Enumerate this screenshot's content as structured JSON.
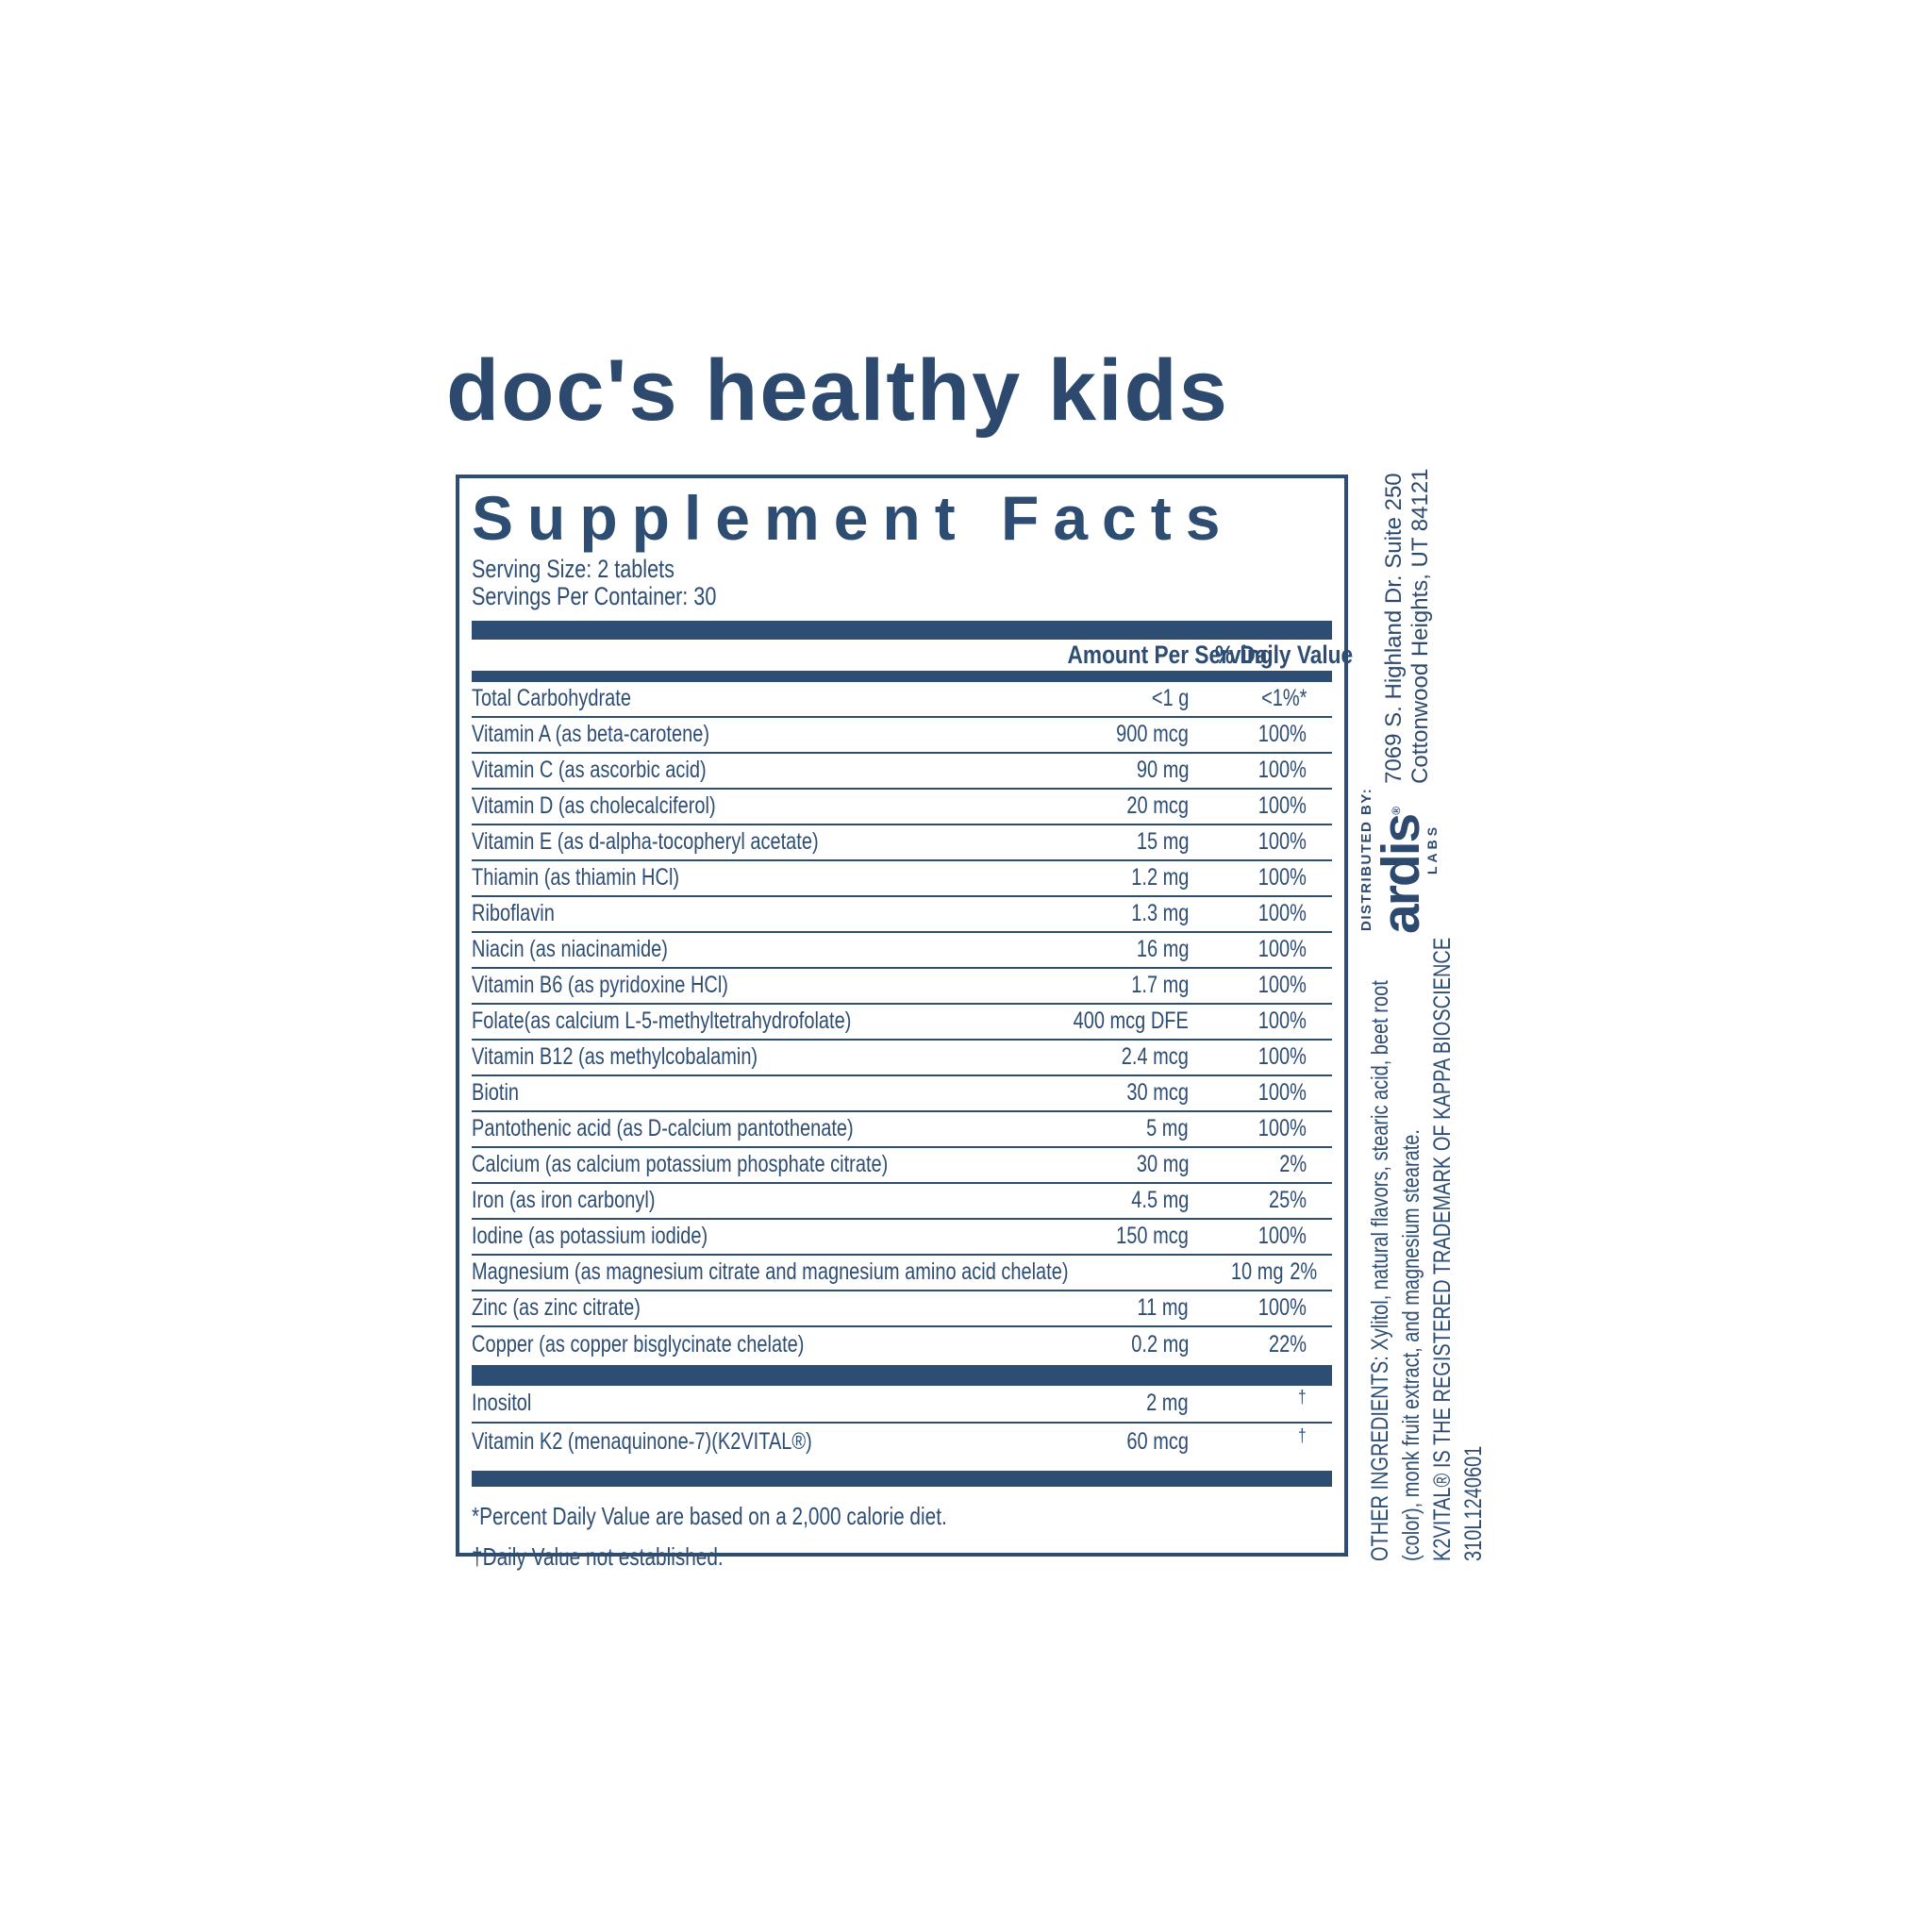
{
  "page": {
    "background": "#ffffff",
    "accent_color": "#2e4d72",
    "title_color": "#2d4a6e"
  },
  "brand": {
    "title": "doc's healthy kids"
  },
  "supplement_facts": {
    "title": "Supplement Facts",
    "serving_size": "Serving Size: 2 tablets",
    "servings_per_container": "Servings Per Container: 30",
    "columns": {
      "amount": "Amount Per Serving",
      "daily_value": "% Daily Value"
    },
    "rows": [
      {
        "name": "Total Carbohydrate",
        "amount": "<1 g",
        "dv": "<1%*"
      },
      {
        "name": "Vitamin A (as beta-carotene)",
        "amount": "900 mcg",
        "dv": "100%"
      },
      {
        "name": "Vitamin C (as ascorbic acid)",
        "amount": "90 mg",
        "dv": "100%"
      },
      {
        "name": "Vitamin D (as cholecalciferol)",
        "amount": "20 mcg",
        "dv": "100%"
      },
      {
        "name": "Vitamin E (as d-alpha-tocopheryl acetate)",
        "amount": "15 mg",
        "dv": "100%"
      },
      {
        "name": "Thiamin (as thiamin HCl)",
        "amount": "1.2 mg",
        "dv": "100%"
      },
      {
        "name": "Riboflavin",
        "amount": "1.3 mg",
        "dv": "100%"
      },
      {
        "name": "Niacin (as niacinamide)",
        "amount": "16 mg",
        "dv": "100%"
      },
      {
        "name": "Vitamin B6 (as pyridoxine HCl)",
        "amount": "1.7 mg",
        "dv": "100%"
      },
      {
        "name": "Folate(as calcium L-5-methyltetrahydrofolate)",
        "amount": "400 mcg DFE",
        "dv": "100%"
      },
      {
        "name": "Vitamin B12 (as methylcobalamin)",
        "amount": "2.4 mcg",
        "dv": "100%"
      },
      {
        "name": "Biotin",
        "amount": "30 mcg",
        "dv": "100%"
      },
      {
        "name": "Pantothenic acid (as D-calcium pantothenate)",
        "amount": "5 mg",
        "dv": "100%"
      },
      {
        "name": "Calcium (as calcium potassium phosphate citrate)",
        "amount": "30 mg",
        "dv": "2%"
      },
      {
        "name": "Iron (as iron carbonyl)",
        "amount": "4.5 mg",
        "dv": "25%"
      },
      {
        "name": "Iodine (as potassium iodide)",
        "amount": "150 mcg",
        "dv": "100%"
      },
      {
        "name": "Magnesium (as magnesium citrate and magnesium amino acid chelate)",
        "amount": "10 mg",
        "dv": "2%"
      },
      {
        "name": "Zinc (as zinc citrate)",
        "amount": "11 mg",
        "dv": "100%"
      },
      {
        "name": "Copper (as copper bisglycinate chelate)",
        "amount": "0.2 mg",
        "dv": "22%"
      }
    ],
    "extra_rows": [
      {
        "name": "Inositol",
        "amount": "2 mg",
        "dv": "†"
      },
      {
        "name": "Vitamin K2 (menaquinone-7)(K2VITAL®)",
        "amount": "60 mcg",
        "dv": "†"
      }
    ],
    "footnotes": {
      "percent_dv": "*Percent Daily Value are based on a 2,000 calorie diet.",
      "not_established": "†Daily Value not established."
    }
  },
  "distributor": {
    "label": "DISTRIBUTED BY:",
    "logo": "ardis",
    "logo_mark": "®",
    "logo_sub": "LABS",
    "address_line1": "7069 S. Highland Dr. Suite 250",
    "address_line2": "Cottonwood Heights, UT 84121"
  },
  "side_notes": {
    "other_ingredients_line1": "OTHER INGREDIENTS: Xylitol, natural flavors, stearic acid, beet root",
    "other_ingredients_line2": "(color), monk fruit extract, and magnesium stearate.",
    "trademark": "K2VITAL®  IS THE REGISTERED TRADEMARK OF KAPPA BIOSCIENCE",
    "lot_code": "310L1240601"
  }
}
